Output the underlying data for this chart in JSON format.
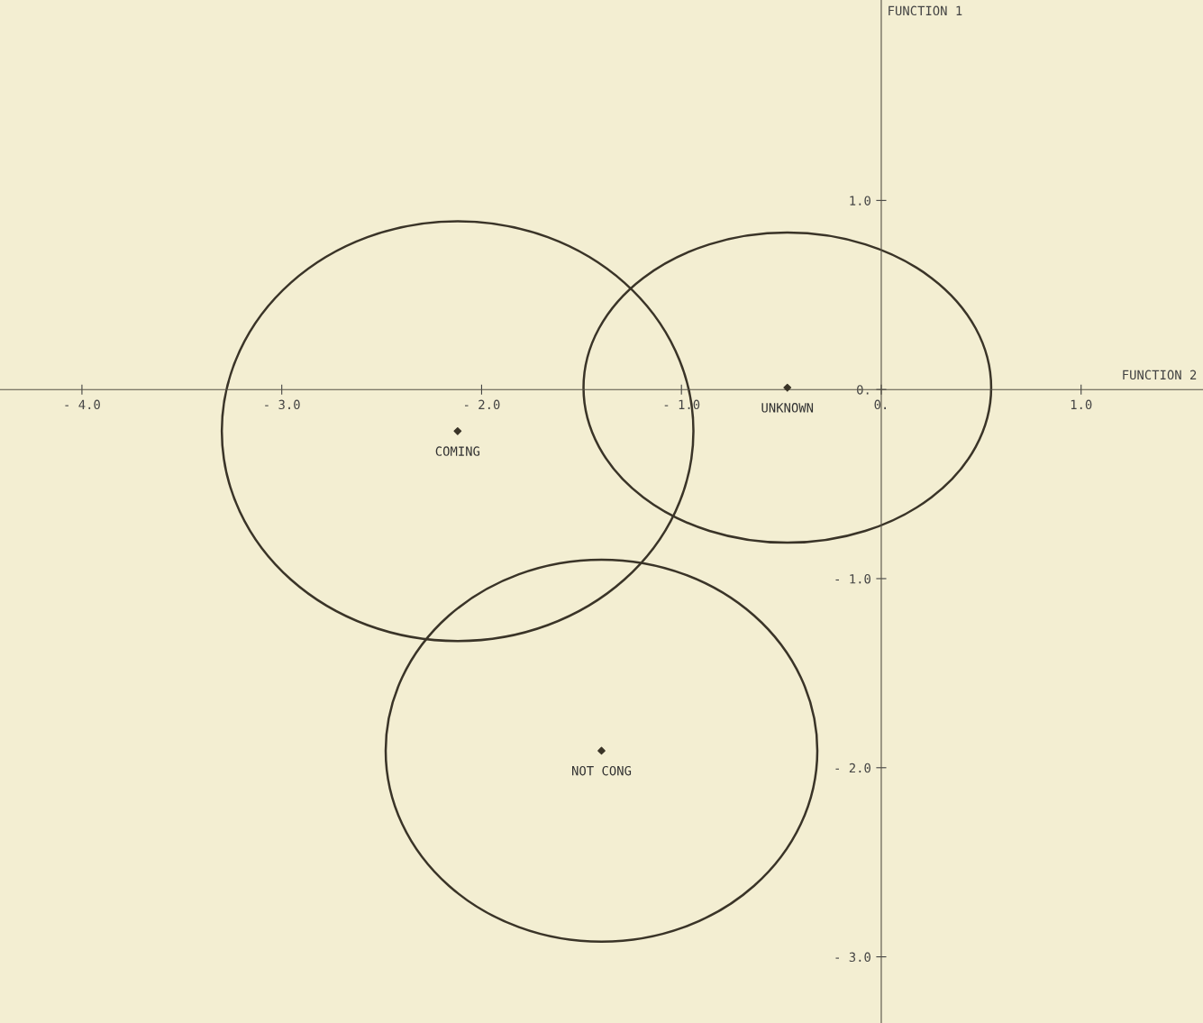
{
  "chart_data": {
    "type": "scatter",
    "xlabel": "FUNCTION 2",
    "ylabel": "FUNCTION 1",
    "xlim": [
      -4.41,
      1.61
    ],
    "ylim": [
      -3.35,
      2.06
    ],
    "xticks": [
      {
        "value": -4,
        "label": "- 4.0"
      },
      {
        "value": -3,
        "label": "- 3.0"
      },
      {
        "value": -2,
        "label": "- 2.0"
      },
      {
        "value": -1,
        "label": "- 1.0"
      },
      {
        "value": 0,
        "label": "0."
      },
      {
        "value": 1,
        "label": "1.0"
      }
    ],
    "yticks": [
      {
        "value": 1,
        "label": "1.0"
      },
      {
        "value": 0,
        "label": "0."
      },
      {
        "value": -1,
        "label": "- 1.0"
      },
      {
        "value": -2,
        "label": "- 2.0"
      },
      {
        "value": -3,
        "label": "- 3.0"
      }
    ],
    "grid": false,
    "marker": "diamond",
    "series": [
      {
        "color": "#3a3428",
        "x": [
          -2.12,
          -0.47,
          -1.4
        ],
        "values": [
          -0.22,
          0.01,
          -1.91
        ]
      }
    ],
    "annotations": [
      {
        "text": "COMING",
        "x": -2.12,
        "y": -0.22
      },
      {
        "text": "UNKNOWN",
        "x": -0.47,
        "y": 0.01
      },
      {
        "text": "NOT CONG",
        "x": -1.4,
        "y": -1.91
      }
    ]
  }
}
